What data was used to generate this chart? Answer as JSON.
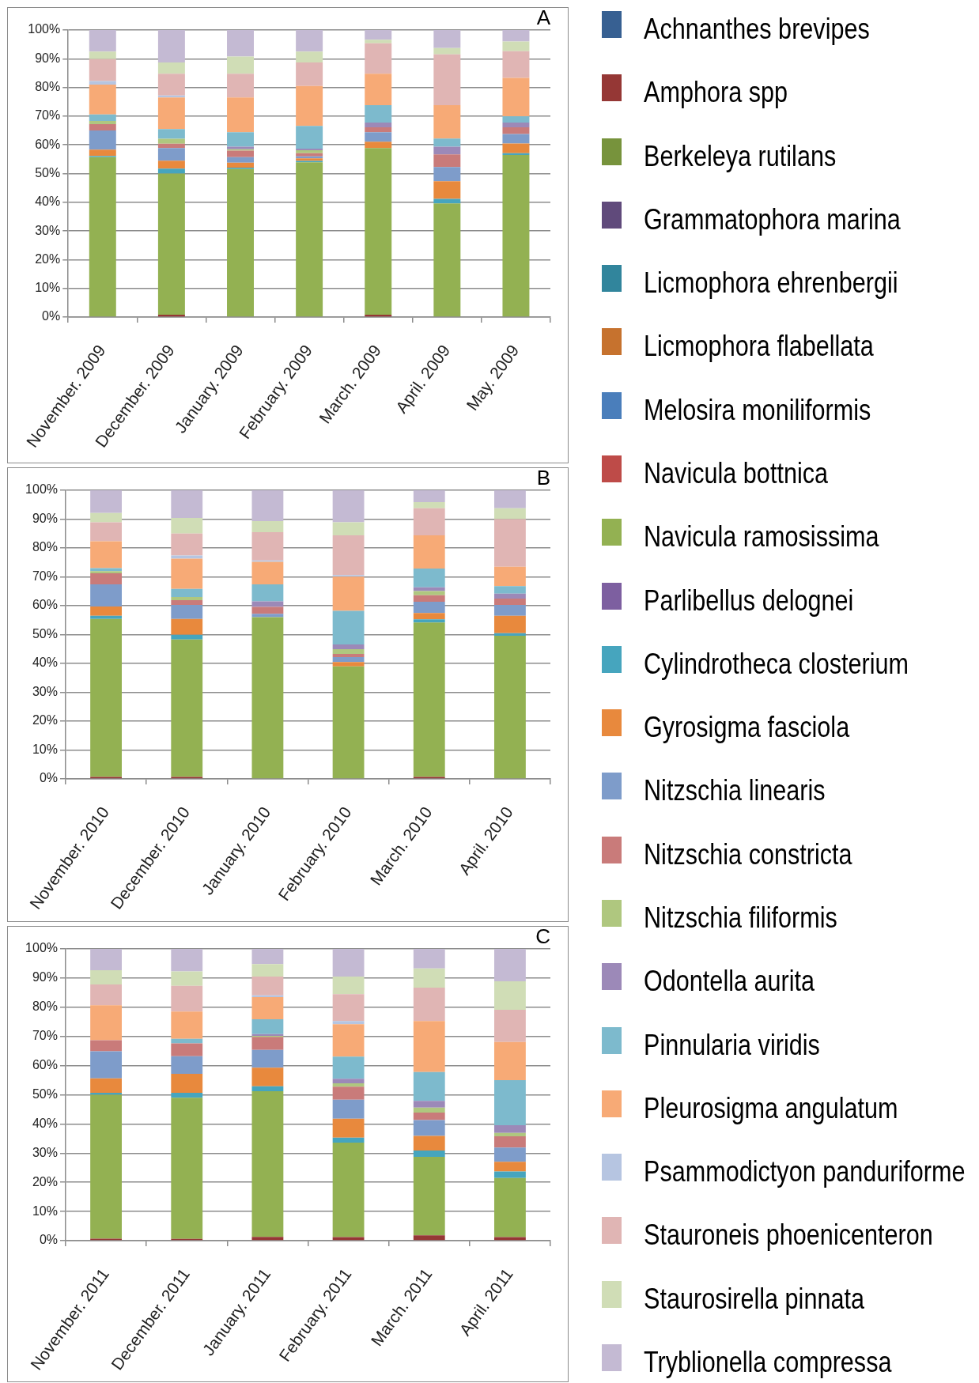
{
  "chart_data": [
    {
      "type": "bar",
      "title": "A",
      "stacked": true,
      "grid": "y",
      "legend": "right",
      "categories": [
        "November. 2009",
        "December. 2009",
        "January. 2009",
        "February. 2009",
        "March. 2009",
        "April. 2009",
        "May. 2009"
      ],
      "ylim": [
        0,
        100
      ],
      "yticks": [
        {
          "value": 0,
          "label": "0%"
        },
        {
          "value": 10,
          "label": "10%"
        },
        {
          "value": 20,
          "label": "20%"
        },
        {
          "value": 30,
          "label": "30%"
        },
        {
          "value": 40,
          "label": "40%"
        },
        {
          "value": 50,
          "label": "50%"
        },
        {
          "value": 60,
          "label": "60%"
        },
        {
          "value": 70,
          "label": "70%"
        },
        {
          "value": 80,
          "label": "80%"
        },
        {
          "value": 90,
          "label": "90%"
        },
        {
          "value": 100,
          "label": "100%"
        }
      ],
      "series": [
        {
          "name": "Achnanthes brevipes",
          "color": "#376092",
          "values": [
            0,
            0,
            0,
            0,
            0,
            0,
            0
          ]
        },
        {
          "name": "Amphora spp",
          "color": "#953735",
          "values": [
            0,
            0.8,
            0,
            0,
            0.8,
            0,
            0
          ]
        },
        {
          "name": "Berkeleya rutilans",
          "color": "#77933c",
          "values": [
            0,
            0,
            0,
            0,
            0,
            0,
            0
          ]
        },
        {
          "name": "Grammatophora marina",
          "color": "#604a7b",
          "values": [
            0,
            0,
            0,
            0,
            0,
            0,
            0
          ]
        },
        {
          "name": "Licmophora ehrenbergii",
          "color": "#31859c",
          "values": [
            0,
            0,
            0,
            0,
            0,
            0,
            0
          ]
        },
        {
          "name": "Licmophora flabellata",
          "color": "#c6722e",
          "values": [
            0,
            0,
            0,
            0,
            0,
            0,
            0
          ]
        },
        {
          "name": "Melosira moniliformis",
          "color": "#4a7ebb",
          "values": [
            0,
            0,
            0,
            0,
            0,
            0,
            0
          ]
        },
        {
          "name": "Navicula bottnica",
          "color": "#be4b48",
          "values": [
            0,
            0,
            0,
            0,
            0,
            0,
            0
          ]
        },
        {
          "name": "Navicula ramosissima",
          "color": "#93b152",
          "values": [
            55.7,
            49.2,
            51.6,
            53.9,
            58.1,
            39.6,
            56.5
          ]
        },
        {
          "name": "Parlibellus delognei",
          "color": "#7d5fa0",
          "values": [
            0,
            0,
            0,
            0,
            0,
            0,
            0
          ]
        },
        {
          "name": "Cylindrotheca closterium",
          "color": "#46a5be",
          "values": [
            0.4,
            1.7,
            0.5,
            0.5,
            0,
            1.6,
            0.6
          ]
        },
        {
          "name": "Gyrosigma fasciola",
          "color": "#e8893d",
          "values": [
            2.2,
            2.8,
            1.7,
            0.9,
            2.2,
            6.1,
            3.4
          ]
        },
        {
          "name": "Nitzschia linearis",
          "color": "#7e9cca",
          "values": [
            6.7,
            4.4,
            1.9,
            0.7,
            3.3,
            5.0,
            3.3
          ]
        },
        {
          "name": "Nitzschia constricta",
          "color": "#c97b7a",
          "values": [
            2.2,
            1.5,
            2.3,
            1.1,
            1.7,
            4.4,
            2.3
          ]
        },
        {
          "name": "Nitzschia filiformis",
          "color": "#afc77f",
          "values": [
            1.1,
            1.7,
            0.5,
            1.0,
            0,
            0,
            0
          ]
        },
        {
          "name": "Odontella aurita",
          "color": "#9c89b8",
          "values": [
            0,
            0,
            0.9,
            0.6,
            1.7,
            2.7,
            1.7
          ]
        },
        {
          "name": "Pinnularia viridis",
          "color": "#7dbacd",
          "values": [
            2.3,
            3.4,
            5.0,
            7.9,
            6.0,
            2.8,
            2.2
          ]
        },
        {
          "name": "Pleurosigma angulatum",
          "color": "#f7aa76",
          "values": [
            10.4,
            11.0,
            12.1,
            13.9,
            11.0,
            11.6,
            13.3
          ]
        },
        {
          "name": "Psammodictyon panduriforme",
          "color": "#b6c5e1",
          "values": [
            1.2,
            0.7,
            0,
            0,
            0,
            0,
            0
          ]
        },
        {
          "name": "Stauroneis phoenicenteron",
          "color": "#e0b5b4",
          "values": [
            7.7,
            7.6,
            8.3,
            8.2,
            10.6,
            17.7,
            9.3
          ]
        },
        {
          "name": "Staurosirella pinnata",
          "color": "#d0ddb6",
          "values": [
            2.6,
            3.9,
            6.0,
            3.8,
            1.2,
            2.2,
            3.4
          ]
        },
        {
          "name": "Tryblionella compressa",
          "color": "#c4bad3",
          "values": [
            7.5,
            11.3,
            9.2,
            7.5,
            3.4,
            6.3,
            4.0
          ]
        }
      ]
    },
    {
      "type": "bar",
      "title": "B",
      "stacked": true,
      "grid": "y",
      "categories": [
        "November. 2010",
        "December. 2010",
        "January. 2010",
        "February. 2010",
        "March. 2010",
        "April. 2010"
      ],
      "ylim": [
        0,
        100
      ],
      "yticks": [
        {
          "value": 0,
          "label": "0%"
        },
        {
          "value": 10,
          "label": "10%"
        },
        {
          "value": 20,
          "label": "20%"
        },
        {
          "value": 30,
          "label": "30%"
        },
        {
          "value": 40,
          "label": "40%"
        },
        {
          "value": 50,
          "label": "50%"
        },
        {
          "value": 60,
          "label": "60%"
        },
        {
          "value": 70,
          "label": "70%"
        },
        {
          "value": 80,
          "label": "80%"
        },
        {
          "value": 90,
          "label": "90%"
        },
        {
          "value": 100,
          "label": "100%"
        }
      ],
      "series": [
        {
          "color": "#376092",
          "values": [
            0,
            0,
            0,
            0,
            0,
            0
          ]
        },
        {
          "color": "#953735",
          "values": [
            0.7,
            0.7,
            0,
            0,
            0.7,
            0
          ]
        },
        {
          "color": "#77933c",
          "values": [
            0,
            0,
            0,
            0,
            0,
            0
          ]
        },
        {
          "color": "#604a7b",
          "values": [
            0,
            0,
            0,
            0,
            0,
            0
          ]
        },
        {
          "color": "#31859c",
          "values": [
            0,
            0,
            0,
            0,
            0,
            0
          ]
        },
        {
          "color": "#c6722e",
          "values": [
            0,
            0,
            0,
            0,
            0,
            0
          ]
        },
        {
          "color": "#4a7ebb",
          "values": [
            0,
            0,
            0,
            0,
            0,
            0
          ]
        },
        {
          "color": "#be4b48",
          "values": [
            0,
            0,
            0,
            0,
            0,
            0
          ]
        },
        {
          "color": "#93b152",
          "values": [
            54.7,
            47.6,
            56.0,
            39.0,
            53.5,
            49.6
          ]
        },
        {
          "color": "#7d5fa0",
          "values": [
            0,
            0,
            0,
            0,
            0,
            0
          ]
        },
        {
          "color": "#46a5be",
          "values": [
            1.1,
            1.6,
            0,
            0,
            1.1,
            0.9
          ]
        },
        {
          "color": "#e8893d",
          "values": [
            3.2,
            5.5,
            0,
            1.5,
            2.2,
            6.0
          ]
        },
        {
          "color": "#7e9cca",
          "values": [
            7.7,
            4.9,
            1.2,
            1.7,
            3.9,
            3.8
          ]
        },
        {
          "color": "#c97b7a",
          "values": [
            3.8,
            1.6,
            2.4,
            1.1,
            2.2,
            2.2
          ]
        },
        {
          "color": "#afc77f",
          "values": [
            0.8,
            1.1,
            0,
            1.6,
            1.5,
            0
          ]
        },
        {
          "color": "#9c89b8",
          "values": [
            0,
            0,
            1.9,
            1.7,
            1.3,
            1.7
          ]
        },
        {
          "color": "#7dbacd",
          "values": [
            1.0,
            2.8,
            5.9,
            11.6,
            6.5,
            2.6
          ]
        },
        {
          "color": "#f7aa76",
          "values": [
            9.3,
            10.5,
            7.8,
            11.9,
            11.5,
            6.7
          ]
        },
        {
          "color": "#b6c5e1",
          "values": [
            0,
            1.1,
            0.5,
            0.5,
            0,
            0
          ]
        },
        {
          "color": "#e0b5b4",
          "values": [
            6.6,
            7.6,
            9.8,
            13.8,
            9.4,
            16.5
          ]
        },
        {
          "color": "#d0ddb6",
          "values": [
            3.2,
            5.4,
            3.8,
            4.5,
            2.1,
            3.8
          ]
        },
        {
          "color": "#c4bad3",
          "values": [
            7.9,
            9.6,
            10.7,
            11.1,
            4.1,
            6.2
          ]
        }
      ]
    },
    {
      "type": "bar",
      "title": "C",
      "stacked": true,
      "grid": "y",
      "categories": [
        "November. 2011",
        "December. 2011",
        "January. 2011",
        "February. 2011",
        "March. 2011",
        "April. 2011"
      ],
      "ylim": [
        0,
        100
      ],
      "yticks": [
        {
          "value": 0,
          "label": "0%"
        },
        {
          "value": 10,
          "label": "10%"
        },
        {
          "value": 20,
          "label": "20%"
        },
        {
          "value": 30,
          "label": "30%"
        },
        {
          "value": 40,
          "label": "40%"
        },
        {
          "value": 50,
          "label": "50%"
        },
        {
          "value": 60,
          "label": "60%"
        },
        {
          "value": 70,
          "label": "70%"
        },
        {
          "value": 80,
          "label": "80%"
        },
        {
          "value": 90,
          "label": "90%"
        },
        {
          "value": 100,
          "label": "100%"
        }
      ],
      "series": [
        {
          "color": "#376092",
          "values": [
            0,
            0,
            0,
            0,
            0,
            0
          ]
        },
        {
          "color": "#953735",
          "values": [
            0.7,
            0.6,
            1.3,
            1.2,
            1.8,
            1.2
          ]
        },
        {
          "color": "#77933c",
          "values": [
            0,
            0,
            0,
            0,
            0,
            0
          ]
        },
        {
          "color": "#604a7b",
          "values": [
            0,
            0,
            0,
            0,
            0,
            0
          ]
        },
        {
          "color": "#31859c",
          "values": [
            0,
            0,
            0,
            0,
            0,
            0
          ]
        },
        {
          "color": "#c6722e",
          "values": [
            0,
            0,
            0,
            0,
            0,
            0
          ]
        },
        {
          "color": "#4a7ebb",
          "values": [
            0,
            0,
            0,
            0,
            0,
            0
          ]
        },
        {
          "color": "#be4b48",
          "values": [
            0,
            0,
            0,
            0,
            0,
            0
          ]
        },
        {
          "color": "#93b152",
          "values": [
            49.3,
            48.4,
            49.9,
            32.4,
            26.9,
            20.3
          ]
        },
        {
          "color": "#7d5fa0",
          "values": [
            0,
            0,
            0,
            0,
            0,
            0
          ]
        },
        {
          "color": "#46a5be",
          "values": [
            0.7,
            1.7,
            1.7,
            1.7,
            2.2,
            2.2
          ]
        },
        {
          "color": "#e8893d",
          "values": [
            4.9,
            6.5,
            6.4,
            6.5,
            5.0,
            3.3
          ]
        },
        {
          "color": "#7e9cca",
          "values": [
            9.3,
            6.0,
            6.1,
            6.5,
            5.4,
            4.9
          ]
        },
        {
          "color": "#c97b7a",
          "values": [
            3.8,
            4.4,
            4.4,
            4.5,
            2.6,
            3.9
          ]
        },
        {
          "color": "#afc77f",
          "values": [
            0,
            0,
            0.4,
            1.1,
            1.7,
            1.1
          ]
        },
        {
          "color": "#9c89b8",
          "values": [
            0,
            0,
            0.6,
            1.6,
            2.3,
            2.7
          ]
        },
        {
          "color": "#7dbacd",
          "values": [
            0,
            1.6,
            5.1,
            7.6,
            9.9,
            15.4
          ]
        },
        {
          "color": "#f7aa76",
          "values": [
            12.0,
            9.3,
            7.6,
            11.1,
            17.5,
            13.1
          ]
        },
        {
          "color": "#b6c5e1",
          "values": [
            0,
            0,
            0.6,
            1.1,
            0,
            0
          ]
        },
        {
          "color": "#e0b5b4",
          "values": [
            7.1,
            8.8,
            6.4,
            9.2,
            11.4,
            11.0
          ]
        },
        {
          "color": "#d0ddb6",
          "values": [
            4.9,
            5.0,
            4.3,
            6.0,
            6.6,
            9.8
          ]
        },
        {
          "color": "#c4bad3",
          "values": [
            7.3,
            7.7,
            5.2,
            9.5,
            6.7,
            11.1
          ]
        }
      ]
    }
  ]
}
